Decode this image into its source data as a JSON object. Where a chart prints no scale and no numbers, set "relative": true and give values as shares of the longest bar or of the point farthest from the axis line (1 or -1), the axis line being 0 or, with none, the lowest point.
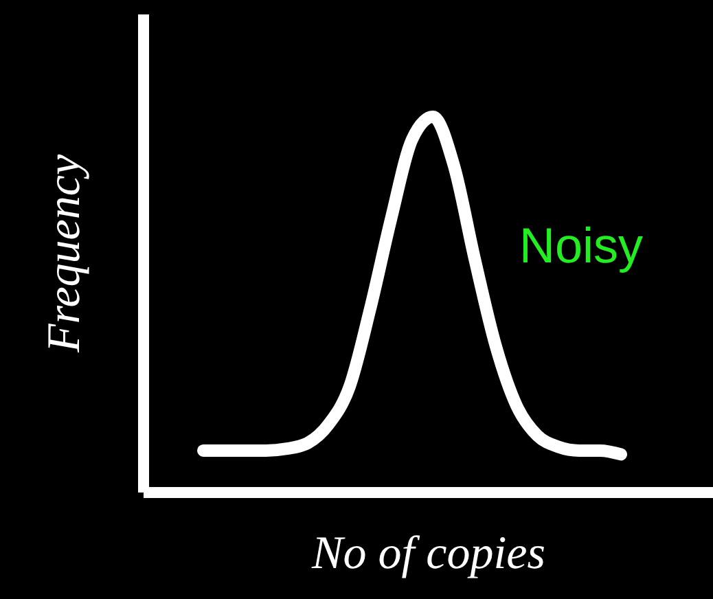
{
  "chart_data": {
    "type": "line",
    "relative": true,
    "xlabel": "No of copies",
    "ylabel": "Frequency",
    "categories": [
      null,
      null,
      null,
      null,
      null,
      null,
      null,
      null,
      null,
      null,
      null,
      null,
      null,
      null,
      null,
      null,
      null,
      null,
      null,
      null,
      null
    ],
    "series": [
      {
        "name": "Noisy",
        "color": "#ffffff",
        "values": [
          0.11,
          0.11,
          0.11,
          0.11,
          0.115,
          0.13,
          0.18,
          0.28,
          0.49,
          0.73,
          0.94,
          1.0,
          0.87,
          0.62,
          0.39,
          0.23,
          0.15,
          0.12,
          0.11,
          0.11,
          0.1
        ]
      }
    ]
  }
}
